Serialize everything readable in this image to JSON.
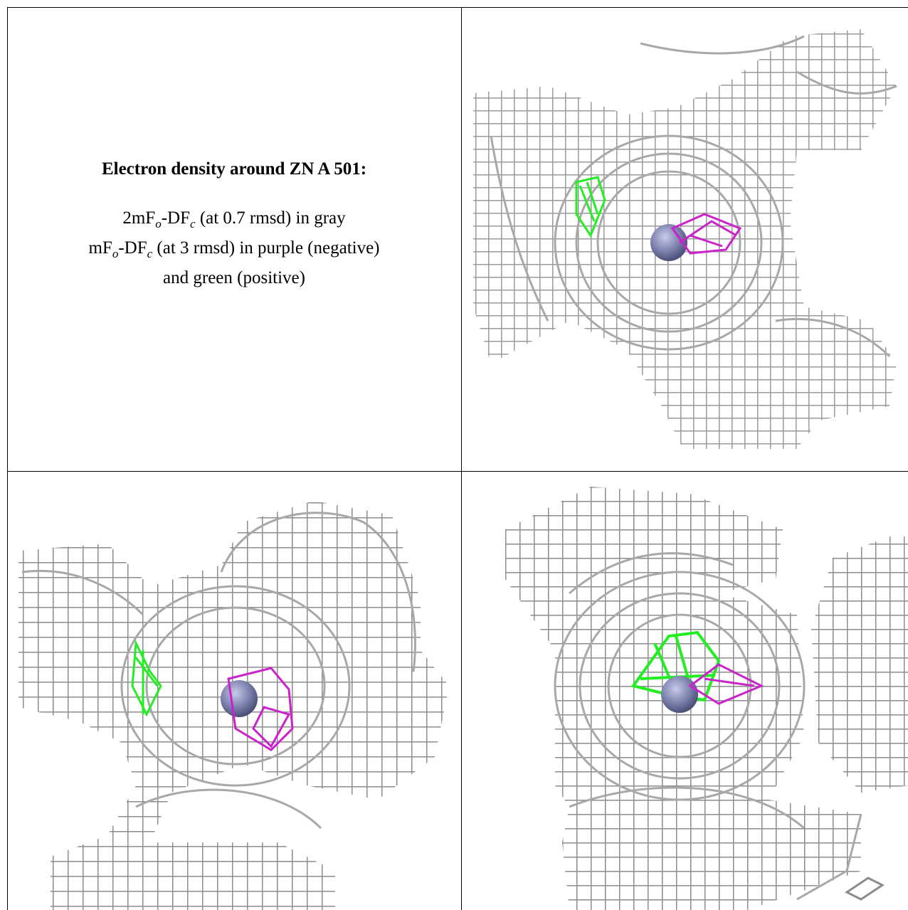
{
  "caption": {
    "title": "Electron density around ZN A 501:",
    "line1_a": "2mF",
    "line1_sub1": "o",
    "line1_b": "-DF",
    "line1_sub2": "c",
    "line1_c": " (at 0.7 rmsd) in gray",
    "line2_a": "mF",
    "line2_sub1": "o",
    "line2_b": "-DF",
    "line2_sub2": "c",
    "line2_c": " (at 3 rmsd) in purple (negative)",
    "line3": "and green (positive)"
  },
  "colors": {
    "mesh_dark": "#6e6e6e",
    "mesh_light": "#c9c9c9",
    "positive": "#22ee22",
    "negative": "#cc22cc",
    "zinc": "#7b80ad"
  },
  "panels": [
    {
      "name": "view-top-right",
      "atom": "zinc-sphere"
    },
    {
      "name": "view-bottom-left",
      "atom": "zinc-sphere"
    },
    {
      "name": "view-bottom-right",
      "atom": "zinc-sphere"
    }
  ]
}
